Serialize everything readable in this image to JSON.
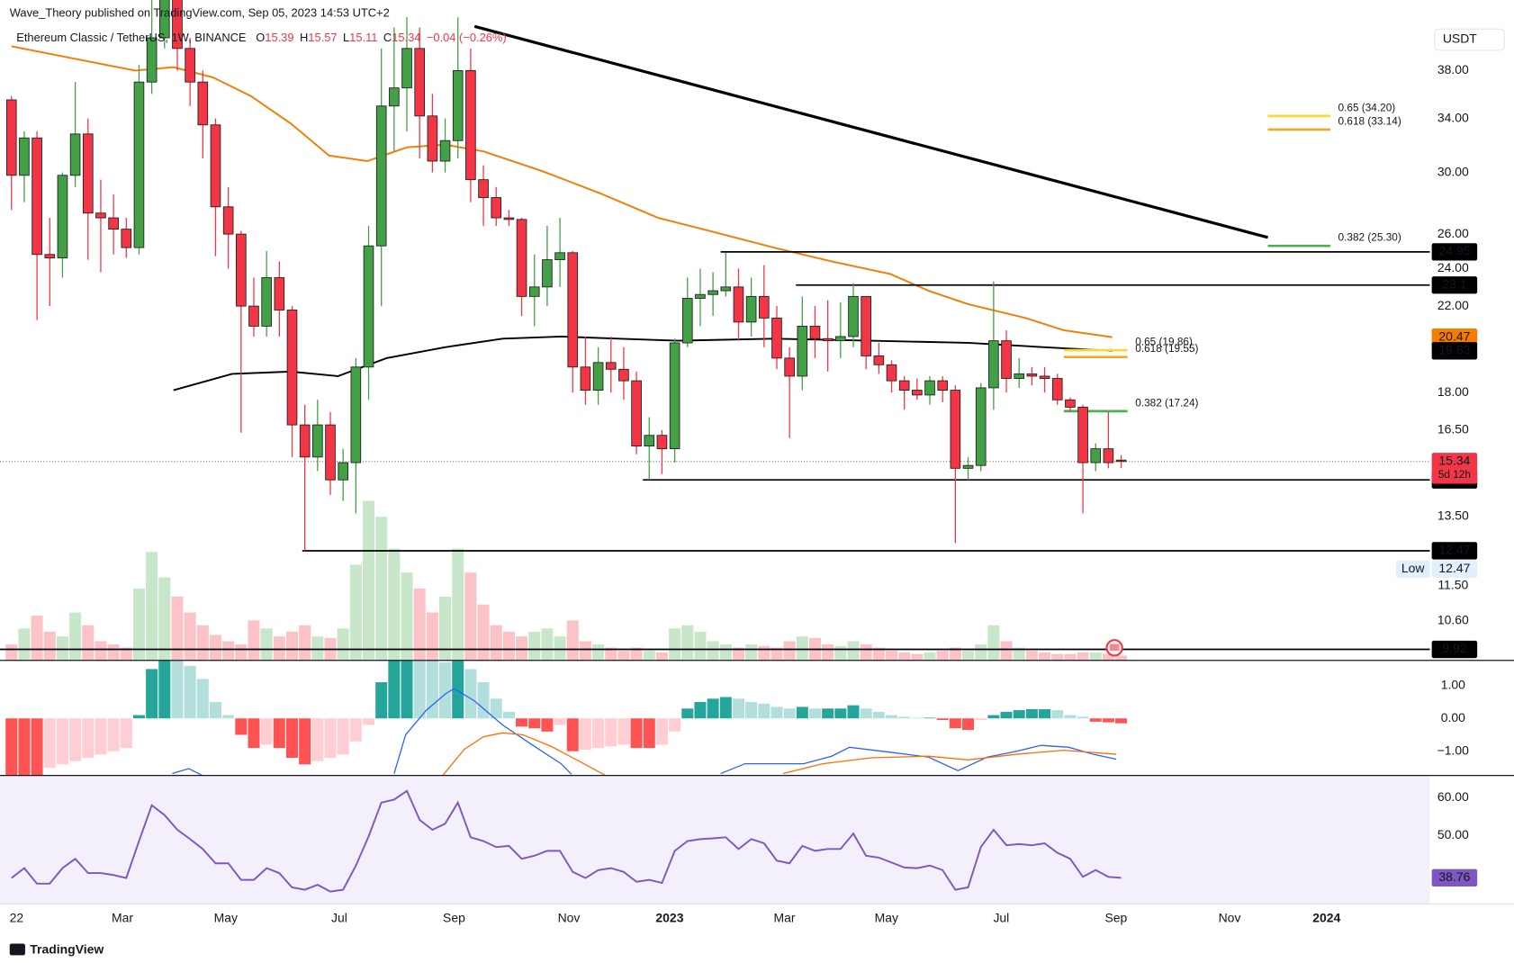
{
  "header": {
    "publisher": "Wave_Theory published on TradingView.com, Sep 05, 2023 14:53 UTC+2",
    "currency": "USDT",
    "footer": "TradingView"
  },
  "chart_data": [
    {
      "type": "candlestick",
      "legend": {
        "symbol": "Ethereum Classic / TetherUS, 1W, BINANCE",
        "ohlc_letters": [
          "O",
          "H",
          "L",
          "C"
        ],
        "change": "−0.04 (−0.26%)"
      },
      "open": [
        35.5,
        29.8,
        32.5,
        24.8,
        24.6,
        29.8,
        32.8,
        27.3,
        27,
        26.3,
        25.2,
        37,
        41,
        46,
        40,
        37,
        33.5,
        27.7,
        26,
        22,
        21,
        23.5,
        21.8,
        16.7,
        15.5,
        16.7,
        14.7,
        15.3,
        19.1,
        25.3,
        35,
        36.5,
        40,
        34.2,
        30.8,
        32.3,
        38,
        29.5,
        28.3,
        27,
        26.9,
        22.5,
        23,
        24.5,
        24.9,
        19.1,
        18.1,
        19.3,
        19,
        18.5,
        15.9,
        16.3,
        15.8,
        20.2,
        22.4,
        22.6,
        22.8,
        23,
        21.2,
        22.5,
        21.4,
        19.5,
        18.7,
        21,
        20.4,
        20.3,
        20.5,
        22.5,
        19.6,
        19.2,
        18.5,
        18.1,
        17.9,
        18.5,
        18.1,
        15.1,
        15.2,
        18.2,
        20.3,
        18.6,
        18.8,
        18.7,
        18.6,
        17.7,
        17.4,
        15.3,
        15.8,
        15.39
      ],
      "high": [
        35.8,
        33,
        33,
        27,
        30,
        37,
        34,
        29.5,
        28.5,
        27,
        38.5,
        45,
        50,
        47,
        41,
        38,
        34,
        29,
        26.2,
        23.5,
        25,
        24.4,
        22,
        17.5,
        17.7,
        17.2,
        15.8,
        19.5,
        26.5,
        40,
        42,
        43,
        42,
        36,
        34,
        43,
        40,
        30.5,
        29,
        27.5,
        27,
        24.8,
        26.5,
        27,
        25,
        20.5,
        20,
        20.5,
        20,
        18.9,
        17,
        16.5,
        20.4,
        23.5,
        24,
        23.8,
        24.9,
        24,
        23.5,
        24.2,
        22,
        20,
        22.5,
        22,
        22.3,
        22.2,
        23.2,
        22.5,
        20.2,
        19.4,
        18.7,
        18.6,
        18.7,
        18.7,
        18.3,
        15.5,
        18.4,
        23.3,
        20.8,
        19.5,
        19.1,
        19.1,
        18.8,
        17.8,
        17.5,
        16,
        17.2,
        15.57
      ],
      "low": [
        27.5,
        28,
        21.3,
        22,
        23.5,
        29,
        24.5,
        23.8,
        24.8,
        24.6,
        24.8,
        36,
        40,
        38,
        35,
        31,
        24.7,
        24,
        16.4,
        20.5,
        20.5,
        20.5,
        15.5,
        12.47,
        15,
        14.2,
        14,
        13.6,
        17.7,
        22,
        31.5,
        33,
        31,
        30,
        30,
        31,
        28,
        26.5,
        26.5,
        26.5,
        21.5,
        21,
        22,
        23,
        18,
        17.5,
        17.5,
        18,
        17.7,
        15.6,
        14.7,
        14.9,
        15.3,
        20,
        21,
        21.5,
        22.5,
        20.3,
        20.5,
        20,
        19,
        16.2,
        18.1,
        19.5,
        18.9,
        19.5,
        20,
        19,
        18.8,
        18,
        17.3,
        17.7,
        17.5,
        17.6,
        12.7,
        14.7,
        15,
        17.3,
        18,
        18.2,
        18.3,
        18,
        17.5,
        17.2,
        13.6,
        15,
        15.1,
        15.11
      ],
      "close": [
        29.8,
        32.5,
        24.8,
        24.6,
        29.8,
        32.8,
        27.3,
        27,
        26.3,
        25.2,
        37,
        41,
        46,
        40,
        37,
        33.5,
        27.7,
        26,
        22,
        21,
        23.5,
        21.8,
        16.7,
        15.5,
        16.7,
        14.7,
        15.3,
        19.1,
        25.3,
        35,
        36.5,
        40,
        34.2,
        30.8,
        32.3,
        38,
        29.5,
        28.3,
        27,
        26.9,
        22.5,
        23,
        24.5,
        24.9,
        19.1,
        18.1,
        19.3,
        19,
        18.5,
        15.9,
        16.3,
        15.8,
        20.2,
        22.4,
        22.6,
        22.8,
        23,
        21.2,
        22.5,
        21.4,
        19.5,
        18.7,
        21,
        20.4,
        20.3,
        20.5,
        22.5,
        19.6,
        19.2,
        18.5,
        18.1,
        17.9,
        18.5,
        18.1,
        15.1,
        15.2,
        18.2,
        20.3,
        18.6,
        18.8,
        18.7,
        18.6,
        17.7,
        17.4,
        15.3,
        15.8,
        15.3,
        15.34
      ],
      "up_color": "#43a047",
      "down_color": "#f23645",
      "countdown": "5d 12h",
      "low_label": "Low",
      "log_scale": true,
      "ylim": [
        9.67,
        44.76
      ],
      "yticks": [
        {
          "value": 38,
          "label": "38.00"
        },
        {
          "value": 34,
          "label": "34.00"
        },
        {
          "value": 30,
          "label": "30.00"
        },
        {
          "value": 26,
          "label": "26.00"
        },
        {
          "value": 24,
          "label": "24.00"
        },
        {
          "value": 22,
          "label": "22.00"
        },
        {
          "value": 18,
          "label": "18.00"
        },
        {
          "value": 16.5,
          "label": "16.50"
        },
        {
          "value": 13.5,
          "label": "13.50"
        },
        {
          "value": 11.5,
          "label": "11.50"
        },
        {
          "value": 10.6,
          "label": "10.60"
        }
      ],
      "xlim": [
        -0.9,
        111.2
      ],
      "xticks": [
        {
          "value": 0.4,
          "label": "22"
        },
        {
          "value": 8.7,
          "label": "Mar"
        },
        {
          "value": 16.8,
          "label": "May"
        },
        {
          "value": 25.7,
          "label": "Jul"
        },
        {
          "value": 34.7,
          "label": "Sep"
        },
        {
          "value": 43.7,
          "label": "Nov"
        },
        {
          "value": 51.6,
          "label": "2023"
        },
        {
          "value": 60.6,
          "label": "Mar"
        },
        {
          "value": 68.6,
          "label": "May"
        },
        {
          "value": 77.6,
          "label": "Jul"
        },
        {
          "value": 86.6,
          "label": "Sep"
        },
        {
          "value": 95.5,
          "label": "Nov"
        },
        {
          "value": 103.1,
          "label": "2024"
        }
      ],
      "grid": false,
      "moving_averages": [
        {
          "color": "#f57c00",
          "x": [
            0,
            5.2,
            9.7,
            12.7,
            15.8,
            18.8,
            21.9,
            24.9,
            27.9,
            31,
            34,
            37,
            41.6,
            46.1,
            50.7,
            55.2,
            59.8,
            64.3,
            68.9,
            71.9,
            75,
            79.5,
            82.5,
            86.3
          ],
          "values": [
            40.2,
            39,
            38,
            38.3,
            37.4,
            35.8,
            33.6,
            31.2,
            30.8,
            31.8,
            32,
            31.5,
            30.1,
            28.6,
            27,
            26.1,
            25.2,
            24.4,
            23.7,
            22.8,
            22.1,
            21.4,
            20.8,
            20.47
          ]
        },
        {
          "color": "#000000",
          "x": [
            12.7,
            17.3,
            21.9,
            25.6,
            29.4,
            34,
            38.5,
            43.1,
            47.6,
            52.2,
            59.8,
            67.4,
            75,
            81,
            86.3
          ],
          "values": [
            18.1,
            18.8,
            18.9,
            18.7,
            19.5,
            20,
            20.4,
            20.5,
            20.4,
            20.3,
            20.4,
            20.3,
            20.2,
            20,
            19.83
          ]
        }
      ],
      "trendline": {
        "color": "#000000",
        "x": [
          36.3,
          98.5
        ],
        "values": [
          42.1,
          25.8
        ]
      },
      "levels": [
        {
          "value": 24.95,
          "start": 55.6
        },
        {
          "value": 23.1,
          "start": 61.5
        },
        {
          "value": 14.7,
          "start": 49.5
        },
        {
          "value": 12.47,
          "start": 22.8
        },
        {
          "value": 9.92,
          "start": -0.9
        }
      ],
      "fib_levels": [
        {
          "label": "0.65 (34.20)",
          "value": 34.2,
          "color": "#fdd835",
          "x": [
            98.5,
            103.4
          ]
        },
        {
          "label": "0.618 (33.14)",
          "value": 33.14,
          "color": "#f5a623",
          "x": [
            98.5,
            103.4
          ]
        },
        {
          "label": "0.382 (25.30)",
          "value": 25.3,
          "color": "#4caf50",
          "x": [
            98.5,
            103.4
          ]
        },
        {
          "label": "0.65 (19.86)",
          "value": 19.86,
          "color": "#fdd835",
          "x": [
            82.5,
            87.5
          ]
        },
        {
          "label": "0.618 (19.55)",
          "value": 19.55,
          "color": "#f5a623",
          "x": [
            82.5,
            87.5
          ]
        },
        {
          "label": "0.382 (17.24)",
          "value": 17.24,
          "color": "#4caf50",
          "x": [
            82.5,
            87.5
          ]
        }
      ]
    },
    {
      "type": "bar",
      "up_color": "#c8e6c9",
      "down_color": "#fbc2c7",
      "values": [
        10,
        20,
        28,
        18,
        15,
        30,
        22,
        12,
        10,
        8,
        45,
        68,
        52,
        40,
        30,
        22,
        16,
        12,
        10,
        25,
        20,
        15,
        18,
        22,
        15,
        14,
        20,
        60,
        100,
        90,
        70,
        55,
        45,
        30,
        40,
        70,
        55,
        35,
        22,
        18,
        15,
        18,
        20,
        15,
        25,
        12,
        10,
        8,
        6,
        8,
        6,
        5,
        20,
        22,
        18,
        12,
        10,
        8,
        10,
        9,
        8,
        12,
        15,
        14,
        10,
        9,
        12,
        10,
        8,
        6,
        5,
        4,
        5,
        6,
        8,
        6,
        10,
        22,
        12,
        8,
        6,
        5,
        4,
        4,
        5,
        5,
        4,
        3
      ]
    },
    {
      "type": "macd",
      "histogram": [
        -1.8,
        -1.8,
        -1.8,
        -1.5,
        -1.4,
        -1.3,
        -1.2,
        -1.1,
        -1.0,
        -0.9,
        0.1,
        1.5,
        1.8,
        1.75,
        1.6,
        1.2,
        0.5,
        0.1,
        -0.5,
        -0.9,
        -0.8,
        -0.9,
        -1.2,
        -1.4,
        -1.3,
        -1.2,
        -1.1,
        -0.7,
        -0.2,
        1.1,
        1.8,
        1.8,
        1.78,
        1.76,
        1.7,
        1.75,
        1.5,
        1.1,
        0.6,
        0.2,
        -0.25,
        -0.3,
        -0.4,
        -0.2,
        -1.0,
        -0.95,
        -0.9,
        -0.85,
        -0.8,
        -0.9,
        -0.9,
        -0.8,
        -0.4,
        0.3,
        0.5,
        0.6,
        0.65,
        0.6,
        0.5,
        0.45,
        0.35,
        0.3,
        0.35,
        0.3,
        0.3,
        0.3,
        0.4,
        0.3,
        0.2,
        0.1,
        0.05,
        0.02,
        0.02,
        -0.05,
        -0.3,
        -0.35,
        -0.05,
        0.1,
        0.2,
        0.25,
        0.28,
        0.28,
        0.25,
        0.1,
        0.05,
        -0.1,
        -0.12,
        -0.15
      ],
      "histogram_colors": [
        "#26a69a",
        "#b2dfdb",
        "#ff5252",
        "#ffcdd2"
      ],
      "series": [
        {
          "color": "#2962ff",
          "x": [
            12.6,
            13.9,
            15,
            null,
            30,
            30.9,
            32.5,
            34,
            34.7,
            36.3,
            38.5,
            40.8,
            43.1,
            43.9,
            null,
            55.6,
            57.5,
            59.8,
            62.1,
            64.3,
            65.7,
            68.9,
            71.9,
            74.2,
            76.5,
            78.8,
            80.7,
            82.9,
            84.8,
            86.6
          ],
          "values": [
            -1.68,
            -1.53,
            -1.74,
            null,
            -1.68,
            -0.5,
            0.24,
            0.74,
            0.91,
            0.53,
            -0.2,
            -0.8,
            -1.38,
            -1.7,
            null,
            -1.68,
            -1.38,
            -1.38,
            -1.38,
            -1.15,
            -0.88,
            -1.03,
            -1.18,
            -1.59,
            -1.18,
            -1.0,
            -0.82,
            -0.88,
            -1.09,
            -1.24
          ]
        },
        {
          "color": "#ff6d00",
          "x": [
            33.8,
            35.5,
            37,
            38.5,
            40.1,
            42.3,
            44.6,
            46.5,
            null,
            60.5,
            63.6,
            67.4,
            71.9,
            75,
            78.8,
            82.5,
            86.6
          ],
          "values": [
            -1.74,
            -0.94,
            -0.56,
            -0.44,
            -0.5,
            -0.85,
            -1.32,
            -1.72,
            null,
            -1.68,
            -1.38,
            -1.2,
            -1.15,
            -1.26,
            -1.09,
            -0.97,
            -1.09
          ]
        }
      ],
      "ylim": [
        -1.735,
        1.765
      ],
      "yticks": [
        {
          "value": 1,
          "label": "1.00"
        },
        {
          "value": 0,
          "label": "0.00"
        },
        {
          "value": -1,
          "label": "−1.00"
        }
      ]
    },
    {
      "type": "line",
      "color": "#7e57c2",
      "values": [
        38.7,
        41.3,
        37.2,
        37.2,
        41.3,
        43.8,
        40,
        40,
        39.5,
        38.7,
        48.5,
        58,
        55.4,
        51.5,
        49,
        46.4,
        42.6,
        42.6,
        38.2,
        38.2,
        41.3,
        40,
        36.2,
        35.6,
        36.9,
        35.1,
        35.6,
        42,
        49.7,
        58.7,
        59.5,
        61.8,
        54.1,
        51.5,
        53.1,
        58.7,
        49.5,
        48.5,
        46.9,
        47.2,
        43.8,
        44.6,
        45.9,
        45.9,
        40.3,
        38.7,
        40.8,
        41.3,
        40.3,
        37.7,
        38.2,
        37.4,
        45.9,
        48.5,
        49,
        49.2,
        49.5,
        46.4,
        49,
        47.9,
        43.3,
        42.6,
        47.2,
        45.9,
        46.4,
        46.4,
        50.5,
        44.6,
        44.1,
        42.8,
        41.5,
        41.3,
        42,
        40.8,
        35.6,
        36.2,
        46.9,
        51.5,
        47.4,
        47.7,
        47.4,
        47.9,
        45.4,
        43.8,
        39,
        40.8,
        39,
        38.76
      ],
      "ylim": [
        31.8,
        65.9
      ],
      "yticks": [
        {
          "value": 60,
          "label": "60.00"
        },
        {
          "value": 50,
          "label": "50.00"
        }
      ]
    }
  ]
}
